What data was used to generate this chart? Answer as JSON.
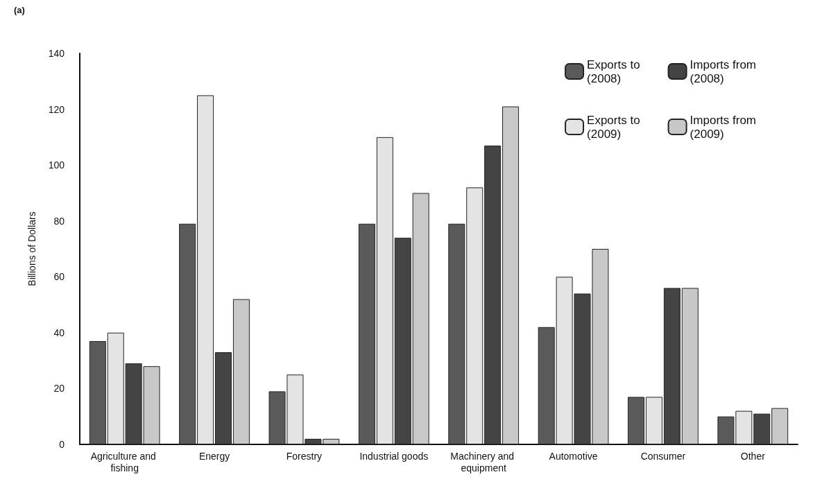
{
  "chart_data": {
    "type": "bar",
    "ylabel": "Billions of Dollars",
    "categories": [
      "Agriculture and fishing",
      "Energy",
      "Forestry",
      "Industrial goods",
      "Machinery and equipment",
      "Automotive",
      "Consumer",
      "Other"
    ],
    "series": [
      {
        "name": "Exports to (2008)",
        "color": "#5a5a5a",
        "values": [
          37,
          79,
          19,
          79,
          79,
          42,
          17,
          10
        ]
      },
      {
        "name": "Exports to (2009)",
        "color": "#e4e4e4",
        "values": [
          40,
          125,
          25,
          110,
          92,
          60,
          17,
          12
        ]
      },
      {
        "name": "Imports from (2008)",
        "color": "#444444",
        "values": [
          29,
          33,
          2,
          74,
          107,
          54,
          56,
          11
        ]
      },
      {
        "name": "Imports from (2009)",
        "color": "#c8c8c8",
        "values": [
          28,
          52,
          2,
          90,
          121,
          70,
          56,
          13
        ]
      }
    ],
    "ylim": [
      0,
      140
    ],
    "yticks": [
      0,
      20,
      40,
      60,
      80,
      100,
      120,
      140
    ],
    "grid": false,
    "legend": "top right",
    "annotations": [
      "(a)"
    ]
  }
}
